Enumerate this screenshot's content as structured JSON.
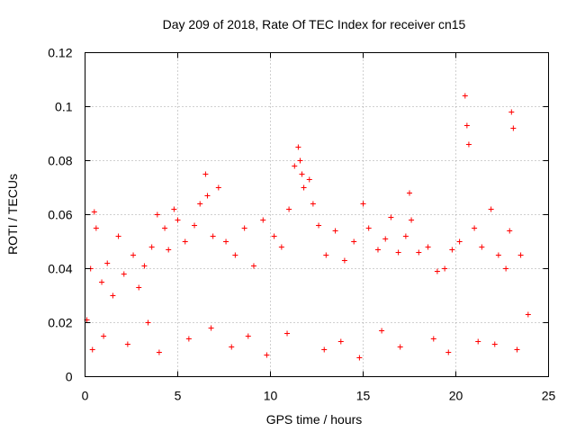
{
  "chart_data": {
    "type": "scatter",
    "title": "Day 209 of 2018, Rate Of TEC Index for receiver cn15",
    "xlabel": "GPS time / hours",
    "ylabel": "ROTI / TECUs",
    "xlim": [
      0,
      25
    ],
    "ylim": [
      0,
      0.12
    ],
    "x_ticks": [
      0,
      5,
      10,
      15,
      20,
      25
    ],
    "y_ticks": [
      0,
      0.02,
      0.04,
      0.06,
      0.08,
      0.1,
      0.12
    ],
    "x_tick_labels": [
      "0",
      "5",
      "10",
      "15",
      "20",
      "25"
    ],
    "y_tick_labels": [
      "0",
      "0.02",
      "0.04",
      "0.06",
      "0.08",
      "0.1",
      "0.12"
    ],
    "grid": true,
    "marker": "+",
    "color": "#ff0000",
    "series": [
      {
        "name": "ROTI",
        "x": [
          0.1,
          0.3,
          0.5,
          0.6,
          0.9,
          1.2,
          1.5,
          1.8,
          2.1,
          2.6,
          2.9,
          3.2,
          3.6,
          3.9,
          4.3,
          4.5,
          4.8,
          5.0,
          5.4,
          5.9,
          6.2,
          6.5,
          6.6,
          6.9,
          7.2,
          7.6,
          8.1,
          8.6,
          9.1,
          9.6,
          10.2,
          10.6,
          11.0,
          11.3,
          11.5,
          11.6,
          11.7,
          11.8,
          12.1,
          12.3,
          12.6,
          13.0,
          13.5,
          14.0,
          14.5,
          15.0,
          15.3,
          15.8,
          16.2,
          16.5,
          16.9,
          17.3,
          17.5,
          17.6,
          18.0,
          18.5,
          19.0,
          19.4,
          19.8,
          20.2,
          20.5,
          20.6,
          20.7,
          21.0,
          21.4,
          21.9,
          22.3,
          22.7,
          22.9,
          23.0,
          23.1,
          23.5,
          23.9,
          0.4,
          1.0,
          2.3,
          3.4,
          4.0,
          5.6,
          6.8,
          7.9,
          8.8,
          9.8,
          10.9,
          12.9,
          13.8,
          14.8,
          16.0,
          17.0,
          18.8,
          19.6,
          21.2,
          22.1,
          23.3
        ],
        "y": [
          0.021,
          0.04,
          0.061,
          0.055,
          0.035,
          0.042,
          0.03,
          0.052,
          0.038,
          0.045,
          0.033,
          0.041,
          0.048,
          0.06,
          0.055,
          0.047,
          0.062,
          0.058,
          0.05,
          0.056,
          0.064,
          0.075,
          0.067,
          0.052,
          0.07,
          0.05,
          0.045,
          0.055,
          0.041,
          0.058,
          0.052,
          0.048,
          0.062,
          0.078,
          0.085,
          0.08,
          0.075,
          0.07,
          0.073,
          0.064,
          0.056,
          0.045,
          0.054,
          0.043,
          0.05,
          0.064,
          0.055,
          0.047,
          0.051,
          0.059,
          0.046,
          0.052,
          0.068,
          0.058,
          0.046,
          0.048,
          0.039,
          0.04,
          0.047,
          0.05,
          0.104,
          0.093,
          0.086,
          0.055,
          0.048,
          0.062,
          0.045,
          0.04,
          0.054,
          0.098,
          0.092,
          0.045,
          0.023,
          0.01,
          0.015,
          0.012,
          0.02,
          0.009,
          0.014,
          0.018,
          0.011,
          0.015,
          0.008,
          0.016,
          0.01,
          0.013,
          0.007,
          0.017,
          0.011,
          0.014,
          0.009,
          0.013,
          0.012,
          0.01
        ]
      }
    ]
  }
}
